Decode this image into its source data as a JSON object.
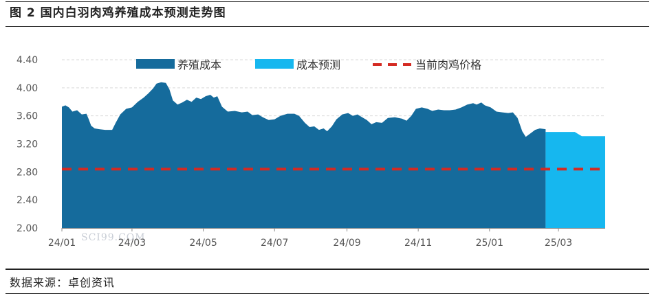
{
  "header": {
    "title": "图 2 国内白羽肉鸡养殖成本预测走势图"
  },
  "footer": {
    "source": "数据来源：卓创资讯"
  },
  "watermark": {
    "text": "SCI99.COM"
  },
  "colors": {
    "cost": "#156b9c",
    "forecast": "#16b7ef",
    "price": "#d42a22",
    "grid": "#d9d9d9",
    "axis": "#8c8c8c"
  },
  "chart_data": {
    "type": "area",
    "title": "",
    "xlabel": "",
    "ylabel": "",
    "ylim": [
      2.0,
      4.4
    ],
    "yticks": [
      "4.40",
      "4.00",
      "3.60",
      "3.20",
      "2.80",
      "2.40",
      "2.00"
    ],
    "ytick_values": [
      4.4,
      4.0,
      3.6,
      3.2,
      2.8,
      2.4,
      2.0
    ],
    "xlim": [
      "2024-01-01",
      "2025-04-10"
    ],
    "xticks": [
      "24/01",
      "24/03",
      "24/05",
      "24/07",
      "24/09",
      "24/11",
      "25/01",
      "25/03"
    ],
    "xtick_dates": [
      "2024-01-01",
      "2024-03-01",
      "2024-05-01",
      "2024-07-01",
      "2024-09-01",
      "2024-11-01",
      "2025-01-01",
      "2025-03-01"
    ],
    "grid": "horizontal dashed",
    "legend_position": "top",
    "series": [
      {
        "name": "养殖成本",
        "kind": "area",
        "points": [
          [
            "2024-01-01",
            3.73
          ],
          [
            "2024-01-04",
            3.75
          ],
          [
            "2024-01-07",
            3.72
          ],
          [
            "2024-01-10",
            3.66
          ],
          [
            "2024-01-14",
            3.68
          ],
          [
            "2024-01-18",
            3.62
          ],
          [
            "2024-01-22",
            3.63
          ],
          [
            "2024-01-24",
            3.55
          ],
          [
            "2024-01-26",
            3.46
          ],
          [
            "2024-01-29",
            3.42
          ],
          [
            "2024-02-02",
            3.41
          ],
          [
            "2024-02-07",
            3.4
          ],
          [
            "2024-02-13",
            3.4
          ],
          [
            "2024-02-16",
            3.5
          ],
          [
            "2024-02-20",
            3.62
          ],
          [
            "2024-02-25",
            3.7
          ],
          [
            "2024-03-01",
            3.72
          ],
          [
            "2024-03-06",
            3.8
          ],
          [
            "2024-03-11",
            3.86
          ],
          [
            "2024-03-15",
            3.92
          ],
          [
            "2024-03-19",
            3.99
          ],
          [
            "2024-03-22",
            4.06
          ],
          [
            "2024-03-26",
            4.08
          ],
          [
            "2024-03-30",
            4.07
          ],
          [
            "2024-04-02",
            3.98
          ],
          [
            "2024-04-05",
            3.82
          ],
          [
            "2024-04-09",
            3.76
          ],
          [
            "2024-04-13",
            3.79
          ],
          [
            "2024-04-17",
            3.83
          ],
          [
            "2024-04-21",
            3.8
          ],
          [
            "2024-04-25",
            3.86
          ],
          [
            "2024-04-29",
            3.84
          ],
          [
            "2024-05-03",
            3.88
          ],
          [
            "2024-05-07",
            3.9
          ],
          [
            "2024-05-10",
            3.86
          ],
          [
            "2024-05-13",
            3.88
          ],
          [
            "2024-05-17",
            3.73
          ],
          [
            "2024-05-22",
            3.66
          ],
          [
            "2024-05-28",
            3.67
          ],
          [
            "2024-06-03",
            3.65
          ],
          [
            "2024-06-08",
            3.66
          ],
          [
            "2024-06-12",
            3.61
          ],
          [
            "2024-06-17",
            3.62
          ],
          [
            "2024-06-21",
            3.58
          ],
          [
            "2024-06-26",
            3.54
          ],
          [
            "2024-07-01",
            3.55
          ],
          [
            "2024-07-06",
            3.6
          ],
          [
            "2024-07-12",
            3.63
          ],
          [
            "2024-07-18",
            3.63
          ],
          [
            "2024-07-22",
            3.6
          ],
          [
            "2024-07-27",
            3.5
          ],
          [
            "2024-07-31",
            3.44
          ],
          [
            "2024-08-04",
            3.45
          ],
          [
            "2024-08-08",
            3.4
          ],
          [
            "2024-08-12",
            3.42
          ],
          [
            "2024-08-15",
            3.38
          ],
          [
            "2024-08-19",
            3.45
          ],
          [
            "2024-08-23",
            3.55
          ],
          [
            "2024-08-28",
            3.62
          ],
          [
            "2024-09-02",
            3.64
          ],
          [
            "2024-09-06",
            3.6
          ],
          [
            "2024-09-10",
            3.62
          ],
          [
            "2024-09-14",
            3.58
          ],
          [
            "2024-09-18",
            3.54
          ],
          [
            "2024-09-22",
            3.48
          ],
          [
            "2024-09-26",
            3.51
          ],
          [
            "2024-10-01",
            3.5
          ],
          [
            "2024-10-06",
            3.57
          ],
          [
            "2024-10-12",
            3.58
          ],
          [
            "2024-10-18",
            3.56
          ],
          [
            "2024-10-22",
            3.53
          ],
          [
            "2024-10-26",
            3.6
          ],
          [
            "2024-10-30",
            3.7
          ],
          [
            "2024-11-04",
            3.72
          ],
          [
            "2024-11-09",
            3.7
          ],
          [
            "2024-11-13",
            3.67
          ],
          [
            "2024-11-18",
            3.69
          ],
          [
            "2024-11-23",
            3.68
          ],
          [
            "2024-11-28",
            3.68
          ],
          [
            "2024-12-03",
            3.69
          ],
          [
            "2024-12-08",
            3.72
          ],
          [
            "2024-12-13",
            3.76
          ],
          [
            "2024-12-18",
            3.78
          ],
          [
            "2024-12-21",
            3.76
          ],
          [
            "2024-12-25",
            3.79
          ],
          [
            "2024-12-28",
            3.75
          ],
          [
            "2025-01-02",
            3.72
          ],
          [
            "2025-01-07",
            3.66
          ],
          [
            "2025-01-12",
            3.65
          ],
          [
            "2025-01-17",
            3.64
          ],
          [
            "2025-01-21",
            3.65
          ],
          [
            "2025-01-25",
            3.57
          ],
          [
            "2025-01-29",
            3.38
          ],
          [
            "2025-02-01",
            3.3
          ],
          [
            "2025-02-05",
            3.35
          ],
          [
            "2025-02-09",
            3.4
          ],
          [
            "2025-02-13",
            3.42
          ],
          [
            "2025-02-18",
            3.41
          ]
        ]
      },
      {
        "name": "成本预测",
        "kind": "area",
        "points": [
          [
            "2025-02-18",
            3.37
          ],
          [
            "2025-02-24",
            3.37
          ],
          [
            "2025-03-03",
            3.37
          ],
          [
            "2025-03-10",
            3.37
          ],
          [
            "2025-03-15",
            3.37
          ],
          [
            "2025-03-18",
            3.34
          ],
          [
            "2025-03-21",
            3.31
          ],
          [
            "2025-04-10",
            3.31
          ]
        ]
      },
      {
        "name": "当前肉鸡价格",
        "kind": "dashed-line",
        "points": [
          [
            "2024-01-01",
            2.84
          ],
          [
            "2025-04-10",
            2.84
          ]
        ]
      }
    ]
  }
}
